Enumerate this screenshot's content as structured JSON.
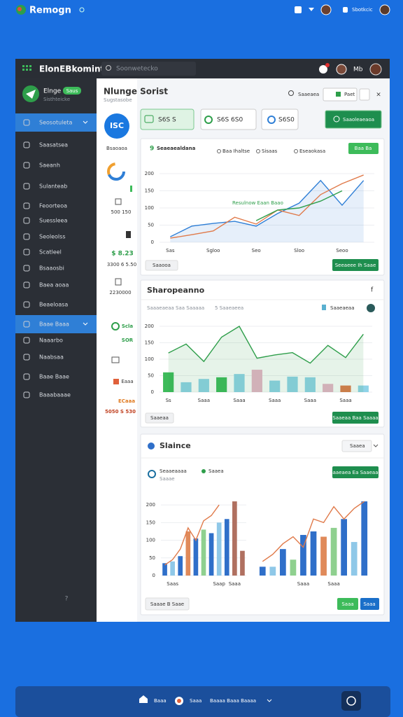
{
  "status_bar": {
    "app_name": "Remogn",
    "account": "Sbotkcic"
  },
  "header": {
    "title": "ElonEBkomint",
    "search": "Soonwetecko",
    "user": "Mb"
  },
  "sidebar": {
    "profile_name": "Elnge",
    "profile_badge": "Saus",
    "profile_role": "Sisthteicke",
    "items": [
      {
        "label": "Seosotuleta",
        "active": true
      },
      {
        "label": "Saasatsea",
        "active": false
      },
      {
        "label": "Saeanh",
        "active": false
      },
      {
        "label": "Sulanteab",
        "active": false
      },
      {
        "label": "Feoorteoa",
        "active": false
      },
      {
        "label": "Suessleea",
        "active": false
      },
      {
        "label": "Seoleolss",
        "active": false
      },
      {
        "label": "Scatleel",
        "active": false
      },
      {
        "label": "Bsaaosbi",
        "active": false
      },
      {
        "label": "Baea aoaa",
        "active": false
      },
      {
        "label": "Beaeloasa",
        "active": false
      },
      {
        "label": "Baae Baaa",
        "active": true
      },
      {
        "label": "Naaarbo",
        "active": false
      },
      {
        "label": "Naabsaa",
        "active": false
      },
      {
        "label": "Baae Baae",
        "active": false
      },
      {
        "label": "Baaabaaae",
        "active": false
      }
    ]
  },
  "stats": {
    "badge": "ISC",
    "badge_caption": "Bsaoaoa",
    "items": [
      "500 150",
      "$ 8.23",
      "3300 6 5.50",
      "2230000",
      "Scla",
      "SOR",
      "Eaaa",
      "ECaaa",
      "5050 S 530"
    ]
  },
  "main": {
    "title": "Nlunge Sorist",
    "subtitle": "Sugstasobe",
    "search": "Saaeaea",
    "button": "Paet",
    "kpis": [
      "S6S S",
      "S6S 6S0",
      "S6S0",
      "Saaoleaeaoa"
    ]
  },
  "cards": [
    {
      "title": "Seaeaealdana",
      "action": "Baa Ba",
      "annotation": "Resulnow Eaan Baao",
      "footer_left": "Saaooa",
      "footer_right": "Seeaeee Ih Saae",
      "chart": {
        "type": "line",
        "ylim": [
          0,
          200
        ],
        "yticks": [
          0,
          50,
          100,
          150,
          200
        ],
        "categories": [
          "Sas",
          null,
          "Sgloo",
          null,
          "Seo",
          null,
          "Sloo",
          null,
          "Seoo",
          null
        ],
        "series": [
          {
            "name": "Baa Ihaltse",
            "kind": "area",
            "color": "#2f7fd6",
            "values": [
              16,
              47,
              55,
              61,
              47,
              84,
              114,
              180,
              108,
              180
            ]
          },
          {
            "name": "Sisaas",
            "kind": "line",
            "color": "#e07a4a",
            "values": [
              12,
              22,
              33,
              73,
              53,
              94,
              78,
              139,
              171,
              196
            ]
          },
          {
            "name": "Eseaokasa",
            "kind": "line",
            "color": "#2e9e4a",
            "values": [
              null,
              null,
              null,
              null,
              63,
              94,
              100,
              120,
              150,
              null
            ]
          }
        ]
      }
    },
    {
      "title": "Sharopeanno",
      "menu": "f",
      "legend_text": "Saaaeaeaa Saa Saaaaa",
      "legend_text_2": "5 Saaeaeea",
      "badge": "Saaeaeaa",
      "footer_left": "Saaeaa",
      "footer_right": "Saaeaa Baa Saaaa",
      "chart": {
        "type": "combo",
        "ylim": [
          0,
          200
        ],
        "yticks": [
          0,
          50,
          100,
          150,
          200
        ],
        "categories": [
          "Ss",
          null,
          "Saaa",
          null,
          "Saaa",
          null,
          "Saaa",
          null,
          "Saaa",
          null,
          "Saaa",
          null
        ],
        "series": [
          {
            "kind": "bar",
            "colors": [
              "#3dbb5a",
              "#8fd3e8",
              "#8fd3e8",
              "#3dbb5a",
              "#8fd3e8",
              "#e8b4c8",
              "#8fd3e8",
              "#8fd3e8",
              "#8fd3e8",
              "#e8b4c8",
              "#e07a4a",
              "#8fd3e8"
            ],
            "values": [
              60,
              30,
              40,
              45,
              55,
              68,
              35,
              47,
              45,
              25,
              20,
              20
            ]
          },
          {
            "kind": "area",
            "color": "#2e9e4a",
            "values": [
              119,
              146,
              93,
              167,
              200,
              103,
              113,
              120,
              88,
              142,
              105,
              176
            ]
          }
        ]
      }
    },
    {
      "title": "Slaince",
      "dropdown": "Saaea",
      "legend": [
        "Seaaeaaaa",
        "Saaea"
      ],
      "legend_sub": "Saaae",
      "action": "Saaeaea Ea Saaeaae",
      "footer_left": "Saaae B Saae",
      "footer_buttons": [
        "Saaa",
        "Saaa"
      ],
      "charts": [
        {
          "type": "combo",
          "ylim": [
            0,
            220
          ],
          "yticks": [
            0,
            50,
            100,
            150,
            200
          ],
          "categories": [
            null,
            "Saas",
            null,
            null,
            null,
            null,
            null,
            "Saap",
            null,
            "Saaa",
            null
          ],
          "series": [
            {
              "kind": "bar",
              "colors": [
                "#2f6fc9",
                "#8fc8e8",
                "#2f6fc9",
                "#e08a5a",
                "#2f6fc9",
                "#8fd08f",
                "#2f6fc9",
                "#8fc8e8",
                "#2f6fc9",
                "#b07060",
                "#b07060"
              ],
              "values": [
                35,
                40,
                55,
                125,
                105,
                130,
                120,
                150,
                160,
                210,
                70
              ]
            },
            {
              "kind": "line",
              "color": "#e07a4a",
              "values": [
                30,
                45,
                75,
                135,
                100,
                155,
                170,
                200,
                null,
                null,
                null
              ]
            }
          ]
        },
        {
          "type": "combo",
          "ylim": [
            0,
            220
          ],
          "categories": [
            null,
            null,
            null,
            null,
            "Saaa",
            null,
            null,
            "Saaa",
            null,
            null,
            null
          ],
          "series": [
            {
              "kind": "bar",
              "colors": [
                "#2f6fc9",
                "#8fc8e8",
                "#2f6fc9",
                "#8fd08f",
                "#2f6fc9",
                "#2f6fc9",
                "#e08a5a",
                "#8fd08f",
                "#2f6fc9",
                "#8fc8e8",
                "#2f6fc9"
              ],
              "values": [
                25,
                25,
                75,
                45,
                115,
                125,
                110,
                135,
                160,
                95,
                210
              ]
            },
            {
              "kind": "line",
              "color": "#e07a4a",
              "values": [
                40,
                60,
                90,
                110,
                80,
                160,
                150,
                195,
                160,
                190,
                210
              ]
            }
          ]
        }
      ]
    }
  ],
  "nav_bar": {
    "items": [
      "Baaa",
      "Saaa",
      "Baaaa Baaa Baaaa"
    ]
  }
}
